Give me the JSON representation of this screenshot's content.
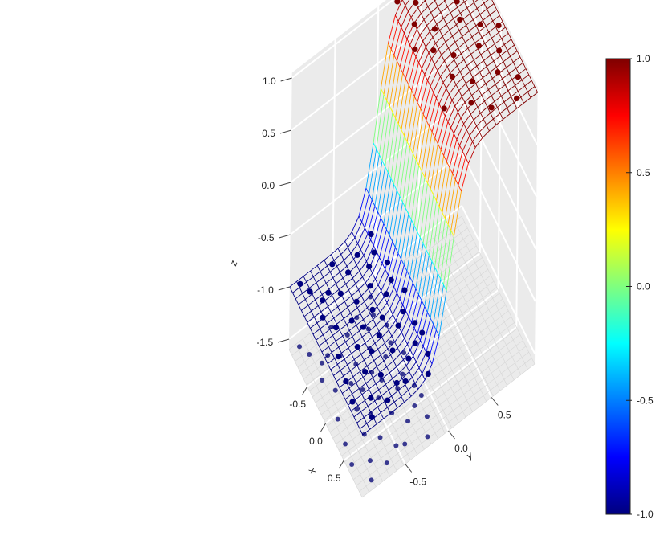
{
  "chart_data": {
    "type": "surface3d",
    "title": "",
    "axes": {
      "x": {
        "label": "x",
        "ticks": [
          "-0.5",
          "0.0",
          "0.5"
        ],
        "range": [
          -1,
          1
        ]
      },
      "y": {
        "label": "y",
        "ticks": [
          "-0.5",
          "0.0",
          "0.5"
        ],
        "range": [
          -1,
          1
        ]
      },
      "z": {
        "label": "z",
        "ticks": [
          "-1.5",
          "-1.0",
          "-0.5",
          "0.0",
          "0.5",
          "1.0"
        ],
        "range": [
          -1.6,
          1.05
        ]
      }
    },
    "surface": {
      "function": "tanh(6*y)",
      "grid_n": 25
    },
    "colorbar": {
      "min": -1.0,
      "max": 1.0,
      "ticks": [
        "-1.0",
        "-0.5",
        "0.0",
        "0.5",
        "1.0"
      ],
      "colors": [
        "#00007F",
        "#0000FF",
        "#007FFF",
        "#00FFFF",
        "#7FFF7F",
        "#FFFF00",
        "#FF7F00",
        "#FF0000",
        "#7F0000"
      ]
    },
    "points": [
      [
        -0.95,
        -0.9,
        -1
      ],
      [
        -0.8,
        -0.85,
        -1
      ],
      [
        -0.62,
        -0.78,
        -1
      ],
      [
        -0.9,
        -0.55,
        -1
      ],
      [
        -0.7,
        -0.45,
        -1
      ],
      [
        -0.55,
        -0.6,
        -1
      ],
      [
        -0.35,
        -0.5,
        -1
      ],
      [
        -0.2,
        -0.62,
        -1
      ],
      [
        -0.05,
        -0.55,
        -1
      ],
      [
        0.1,
        -0.68,
        -1
      ],
      [
        0.25,
        -0.58,
        -1
      ],
      [
        0.4,
        -0.72,
        -1
      ],
      [
        0.55,
        -0.6,
        -1
      ],
      [
        0.7,
        -0.78,
        -1
      ],
      [
        0.85,
        -0.65,
        -1
      ],
      [
        -0.8,
        -0.3,
        -1
      ],
      [
        -0.6,
        -0.25,
        -1
      ],
      [
        -0.4,
        -0.32,
        -1
      ],
      [
        -0.2,
        -0.22,
        -1
      ],
      [
        0.0,
        -0.35,
        -1
      ],
      [
        0.2,
        -0.25,
        -1
      ],
      [
        0.4,
        -0.4,
        -1
      ],
      [
        0.6,
        -0.3,
        -1
      ],
      [
        0.8,
        -0.42,
        -1
      ],
      [
        -0.9,
        -0.1,
        -1
      ],
      [
        -0.7,
        -0.15,
        -1
      ],
      [
        -0.5,
        -0.08,
        -1
      ],
      [
        -0.3,
        -0.12,
        -1
      ],
      [
        -0.1,
        -0.05,
        -1
      ],
      [
        0.1,
        -0.15,
        -1
      ],
      [
        0.3,
        -0.1,
        -1
      ],
      [
        0.5,
        -0.18,
        -1
      ],
      [
        0.7,
        -0.12,
        -1
      ],
      [
        0.9,
        -0.2,
        -1
      ],
      [
        -0.45,
        -0.85,
        -1
      ],
      [
        0.05,
        -0.88,
        -1
      ],
      [
        0.35,
        -0.92,
        -1
      ],
      [
        0.6,
        -0.95,
        -1
      ],
      [
        -0.15,
        -0.4,
        -1
      ],
      [
        0.75,
        -0.5,
        -1
      ],
      [
        -0.65,
        -0.7,
        -1
      ],
      [
        0.15,
        -0.45,
        -1
      ],
      [
        0.45,
        -0.08,
        -1
      ],
      [
        -0.25,
        -0.78,
        -1
      ],
      [
        0.9,
        -0.85,
        -1
      ],
      [
        -0.95,
        0.2,
        1
      ],
      [
        -0.8,
        0.35,
        1
      ],
      [
        -0.6,
        0.25,
        1
      ],
      [
        -0.4,
        0.4,
        1
      ],
      [
        -0.2,
        0.3,
        1
      ],
      [
        0.0,
        0.45,
        1
      ],
      [
        0.2,
        0.35,
        1
      ],
      [
        0.4,
        0.5,
        1
      ],
      [
        0.6,
        0.4,
        1
      ],
      [
        0.8,
        0.55,
        1
      ],
      [
        -0.7,
        0.6,
        1
      ],
      [
        -0.5,
        0.7,
        1
      ],
      [
        -0.3,
        0.65,
        1
      ],
      [
        -0.1,
        0.8,
        1
      ],
      [
        0.1,
        0.7,
        1
      ],
      [
        0.3,
        0.85,
        1
      ],
      [
        0.5,
        0.75,
        1
      ],
      [
        0.7,
        0.9,
        1
      ],
      [
        0.9,
        0.8,
        1
      ],
      [
        -0.85,
        0.85,
        1
      ],
      [
        -0.6,
        0.95,
        1
      ],
      [
        0.05,
        0.95,
        1
      ],
      [
        0.45,
        0.15,
        1
      ],
      [
        -0.35,
        0.15,
        1
      ]
    ]
  }
}
